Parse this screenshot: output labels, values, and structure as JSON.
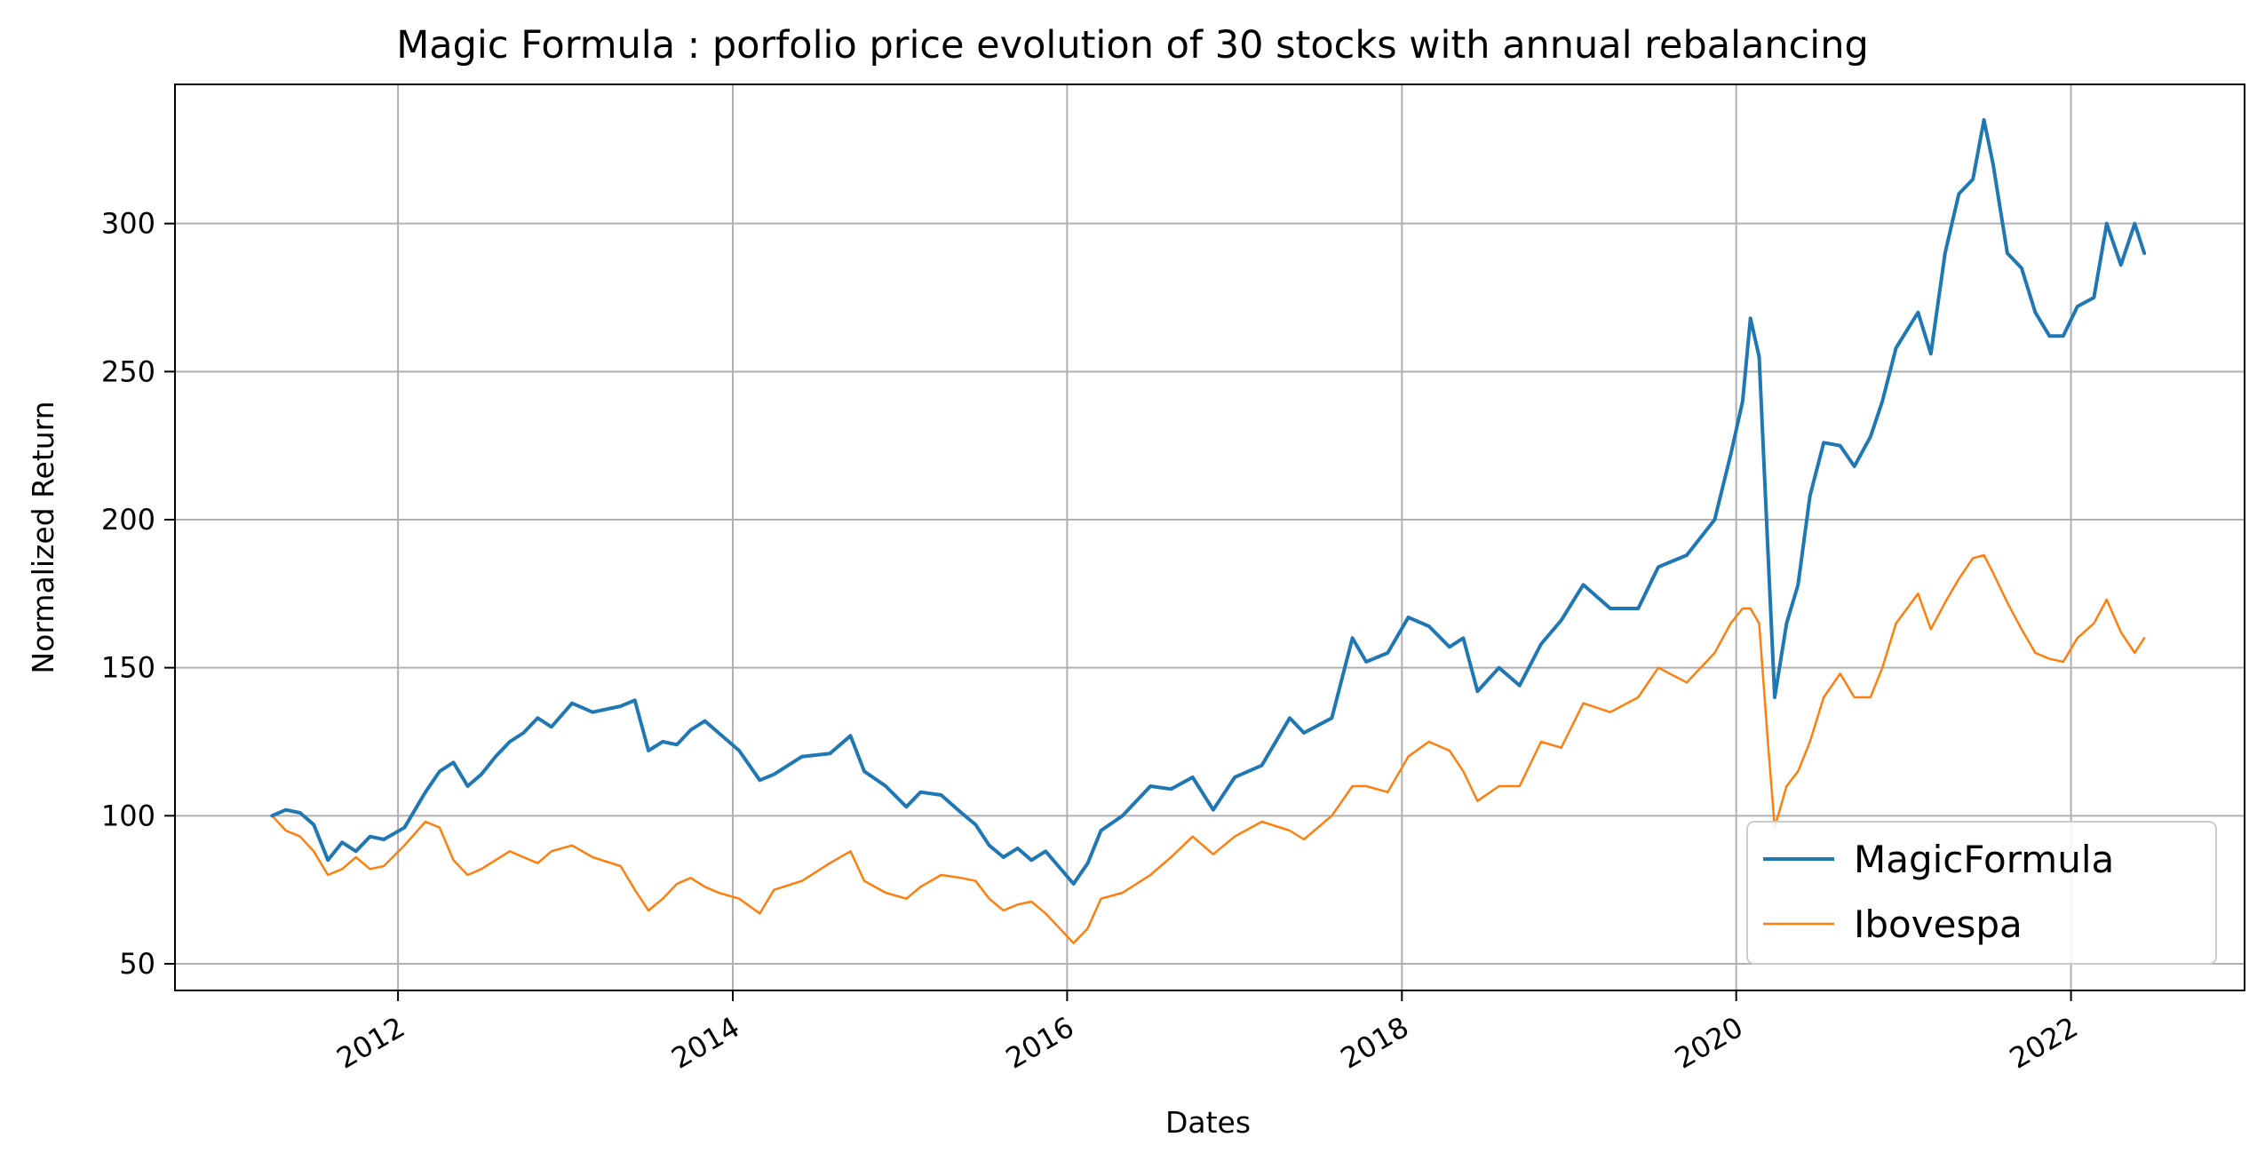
{
  "chart_data": {
    "type": "line",
    "title": "Magic Formula : porfolio price evolution of 30 stocks with annual rebalancing",
    "xlabel": "Dates",
    "ylabel": "Normalized Return",
    "xlim": [
      "2010-09-01",
      "2023-01-15"
    ],
    "ylim": [
      41,
      347
    ],
    "x_ticks": [
      "2012",
      "2014",
      "2016",
      "2018",
      "2020",
      "2022"
    ],
    "y_ticks": [
      50,
      100,
      150,
      200,
      250,
      300
    ],
    "grid": true,
    "legend_position": "lower-right",
    "colors": {
      "MagicFormula": "#1f77b4",
      "Ibovespa": "#ff7f0e"
    },
    "series": [
      {
        "name": "MagicFormula",
        "points": [
          [
            "2011-04-01",
            100
          ],
          [
            "2011-05-01",
            102
          ],
          [
            "2011-06-01",
            101
          ],
          [
            "2011-07-01",
            97
          ],
          [
            "2011-08-01",
            85
          ],
          [
            "2011-09-01",
            91
          ],
          [
            "2011-10-01",
            88
          ],
          [
            "2011-11-01",
            93
          ],
          [
            "2011-12-01",
            92
          ],
          [
            "2012-01-15",
            96
          ],
          [
            "2012-03-01",
            108
          ],
          [
            "2012-04-01",
            115
          ],
          [
            "2012-05-01",
            118
          ],
          [
            "2012-06-01",
            110
          ],
          [
            "2012-07-01",
            114
          ],
          [
            "2012-08-01",
            120
          ],
          [
            "2012-09-01",
            125
          ],
          [
            "2012-10-01",
            128
          ],
          [
            "2012-11-01",
            133
          ],
          [
            "2012-12-01",
            130
          ],
          [
            "2013-01-15",
            138
          ],
          [
            "2013-03-01",
            135
          ],
          [
            "2013-05-01",
            137
          ],
          [
            "2013-06-01",
            139
          ],
          [
            "2013-07-01",
            122
          ],
          [
            "2013-08-01",
            125
          ],
          [
            "2013-09-01",
            124
          ],
          [
            "2013-10-01",
            129
          ],
          [
            "2013-11-01",
            132
          ],
          [
            "2013-12-01",
            128
          ],
          [
            "2014-01-15",
            122
          ],
          [
            "2014-03-01",
            112
          ],
          [
            "2014-04-01",
            114
          ],
          [
            "2014-06-01",
            120
          ],
          [
            "2014-08-01",
            121
          ],
          [
            "2014-09-15",
            127
          ],
          [
            "2014-10-15",
            115
          ],
          [
            "2014-12-01",
            110
          ],
          [
            "2015-01-15",
            103
          ],
          [
            "2015-02-15",
            108
          ],
          [
            "2015-04-01",
            107
          ],
          [
            "2015-05-15",
            101
          ],
          [
            "2015-06-15",
            97
          ],
          [
            "2015-07-15",
            90
          ],
          [
            "2015-08-15",
            86
          ],
          [
            "2015-09-15",
            89
          ],
          [
            "2015-10-15",
            85
          ],
          [
            "2015-11-15",
            88
          ],
          [
            "2016-01-15",
            77
          ],
          [
            "2016-02-15",
            84
          ],
          [
            "2016-03-15",
            95
          ],
          [
            "2016-05-01",
            100
          ],
          [
            "2016-07-01",
            110
          ],
          [
            "2016-08-15",
            109
          ],
          [
            "2016-10-01",
            113
          ],
          [
            "2016-11-15",
            102
          ],
          [
            "2017-01-01",
            113
          ],
          [
            "2017-03-01",
            117
          ],
          [
            "2017-05-01",
            133
          ],
          [
            "2017-06-01",
            128
          ],
          [
            "2017-08-01",
            133
          ],
          [
            "2017-09-15",
            160
          ],
          [
            "2017-10-15",
            152
          ],
          [
            "2017-12-01",
            155
          ],
          [
            "2018-01-15",
            167
          ],
          [
            "2018-03-01",
            164
          ],
          [
            "2018-04-15",
            157
          ],
          [
            "2018-05-15",
            160
          ],
          [
            "2018-06-15",
            142
          ],
          [
            "2018-08-01",
            150
          ],
          [
            "2018-09-15",
            144
          ],
          [
            "2018-11-01",
            158
          ],
          [
            "2018-12-15",
            166
          ],
          [
            "2019-02-01",
            178
          ],
          [
            "2019-04-01",
            170
          ],
          [
            "2019-06-01",
            170
          ],
          [
            "2019-07-15",
            184
          ],
          [
            "2019-09-15",
            188
          ],
          [
            "2019-11-15",
            200
          ],
          [
            "2019-12-20",
            222
          ],
          [
            "2020-01-15",
            240
          ],
          [
            "2020-02-01",
            268
          ],
          [
            "2020-02-20",
            255
          ],
          [
            "2020-03-10",
            190
          ],
          [
            "2020-03-25",
            140
          ],
          [
            "2020-04-20",
            165
          ],
          [
            "2020-05-15",
            178
          ],
          [
            "2020-06-10",
            208
          ],
          [
            "2020-07-10",
            226
          ],
          [
            "2020-08-15",
            225
          ],
          [
            "2020-09-15",
            218
          ],
          [
            "2020-10-20",
            228
          ],
          [
            "2020-11-15",
            240
          ],
          [
            "2020-12-15",
            258
          ],
          [
            "2021-02-01",
            270
          ],
          [
            "2021-03-01",
            256
          ],
          [
            "2021-04-01",
            290
          ],
          [
            "2021-05-01",
            310
          ],
          [
            "2021-06-01",
            315
          ],
          [
            "2021-06-25",
            335
          ],
          [
            "2021-07-15",
            320
          ],
          [
            "2021-08-15",
            290
          ],
          [
            "2021-09-15",
            285
          ],
          [
            "2021-10-15",
            270
          ],
          [
            "2021-11-15",
            262
          ],
          [
            "2021-12-15",
            262
          ],
          [
            "2022-01-15",
            272
          ],
          [
            "2022-02-20",
            275
          ],
          [
            "2022-03-20",
            300
          ],
          [
            "2022-04-20",
            286
          ],
          [
            "2022-05-20",
            300
          ],
          [
            "2022-06-10",
            290
          ]
        ]
      },
      {
        "name": "Ibovespa",
        "points": [
          [
            "2011-04-01",
            100
          ],
          [
            "2011-05-01",
            95
          ],
          [
            "2011-06-01",
            93
          ],
          [
            "2011-07-01",
            88
          ],
          [
            "2011-08-01",
            80
          ],
          [
            "2011-09-01",
            82
          ],
          [
            "2011-10-01",
            86
          ],
          [
            "2011-11-01",
            82
          ],
          [
            "2011-12-01",
            83
          ],
          [
            "2012-01-15",
            90
          ],
          [
            "2012-03-01",
            98
          ],
          [
            "2012-04-01",
            96
          ],
          [
            "2012-05-01",
            85
          ],
          [
            "2012-06-01",
            80
          ],
          [
            "2012-07-01",
            82
          ],
          [
            "2012-08-01",
            85
          ],
          [
            "2012-09-01",
            88
          ],
          [
            "2012-10-01",
            86
          ],
          [
            "2012-11-01",
            84
          ],
          [
            "2012-12-01",
            88
          ],
          [
            "2013-01-15",
            90
          ],
          [
            "2013-03-01",
            86
          ],
          [
            "2013-05-01",
            83
          ],
          [
            "2013-06-01",
            75
          ],
          [
            "2013-07-01",
            68
          ],
          [
            "2013-08-01",
            72
          ],
          [
            "2013-09-01",
            77
          ],
          [
            "2013-10-01",
            79
          ],
          [
            "2013-11-01",
            76
          ],
          [
            "2013-12-01",
            74
          ],
          [
            "2014-01-15",
            72
          ],
          [
            "2014-03-01",
            67
          ],
          [
            "2014-04-01",
            75
          ],
          [
            "2014-06-01",
            78
          ],
          [
            "2014-08-01",
            84
          ],
          [
            "2014-09-15",
            88
          ],
          [
            "2014-10-15",
            78
          ],
          [
            "2014-12-01",
            74
          ],
          [
            "2015-01-15",
            72
          ],
          [
            "2015-02-15",
            76
          ],
          [
            "2015-04-01",
            80
          ],
          [
            "2015-05-15",
            79
          ],
          [
            "2015-06-15",
            78
          ],
          [
            "2015-07-15",
            72
          ],
          [
            "2015-08-15",
            68
          ],
          [
            "2015-09-15",
            70
          ],
          [
            "2015-10-15",
            71
          ],
          [
            "2015-11-15",
            67
          ],
          [
            "2016-01-15",
            57
          ],
          [
            "2016-02-15",
            62
          ],
          [
            "2016-03-15",
            72
          ],
          [
            "2016-05-01",
            74
          ],
          [
            "2016-07-01",
            80
          ],
          [
            "2016-08-15",
            86
          ],
          [
            "2016-10-01",
            93
          ],
          [
            "2016-11-15",
            87
          ],
          [
            "2017-01-01",
            93
          ],
          [
            "2017-03-01",
            98
          ],
          [
            "2017-05-01",
            95
          ],
          [
            "2017-06-01",
            92
          ],
          [
            "2017-08-01",
            100
          ],
          [
            "2017-09-15",
            110
          ],
          [
            "2017-10-15",
            110
          ],
          [
            "2017-12-01",
            108
          ],
          [
            "2018-01-15",
            120
          ],
          [
            "2018-03-01",
            125
          ],
          [
            "2018-04-15",
            122
          ],
          [
            "2018-05-15",
            115
          ],
          [
            "2018-06-15",
            105
          ],
          [
            "2018-08-01",
            110
          ],
          [
            "2018-09-15",
            110
          ],
          [
            "2018-11-01",
            125
          ],
          [
            "2018-12-15",
            123
          ],
          [
            "2019-02-01",
            138
          ],
          [
            "2019-04-01",
            135
          ],
          [
            "2019-06-01",
            140
          ],
          [
            "2019-07-15",
            150
          ],
          [
            "2019-09-15",
            145
          ],
          [
            "2019-11-15",
            155
          ],
          [
            "2019-12-20",
            165
          ],
          [
            "2020-01-15",
            170
          ],
          [
            "2020-02-01",
            170
          ],
          [
            "2020-02-20",
            165
          ],
          [
            "2020-03-10",
            125
          ],
          [
            "2020-03-25",
            96
          ],
          [
            "2020-04-20",
            110
          ],
          [
            "2020-05-15",
            115
          ],
          [
            "2020-06-10",
            125
          ],
          [
            "2020-07-10",
            140
          ],
          [
            "2020-08-15",
            148
          ],
          [
            "2020-09-15",
            140
          ],
          [
            "2020-10-20",
            140
          ],
          [
            "2020-11-15",
            150
          ],
          [
            "2020-12-15",
            165
          ],
          [
            "2021-02-01",
            175
          ],
          [
            "2021-03-01",
            163
          ],
          [
            "2021-04-01",
            172
          ],
          [
            "2021-05-01",
            180
          ],
          [
            "2021-06-01",
            187
          ],
          [
            "2021-06-25",
            188
          ],
          [
            "2021-07-15",
            182
          ],
          [
            "2021-08-15",
            172
          ],
          [
            "2021-09-15",
            163
          ],
          [
            "2021-10-15",
            155
          ],
          [
            "2021-11-15",
            153
          ],
          [
            "2021-12-15",
            152
          ],
          [
            "2022-01-15",
            160
          ],
          [
            "2022-02-20",
            165
          ],
          [
            "2022-03-20",
            173
          ],
          [
            "2022-04-20",
            162
          ],
          [
            "2022-05-20",
            155
          ],
          [
            "2022-06-10",
            160
          ]
        ]
      }
    ]
  }
}
